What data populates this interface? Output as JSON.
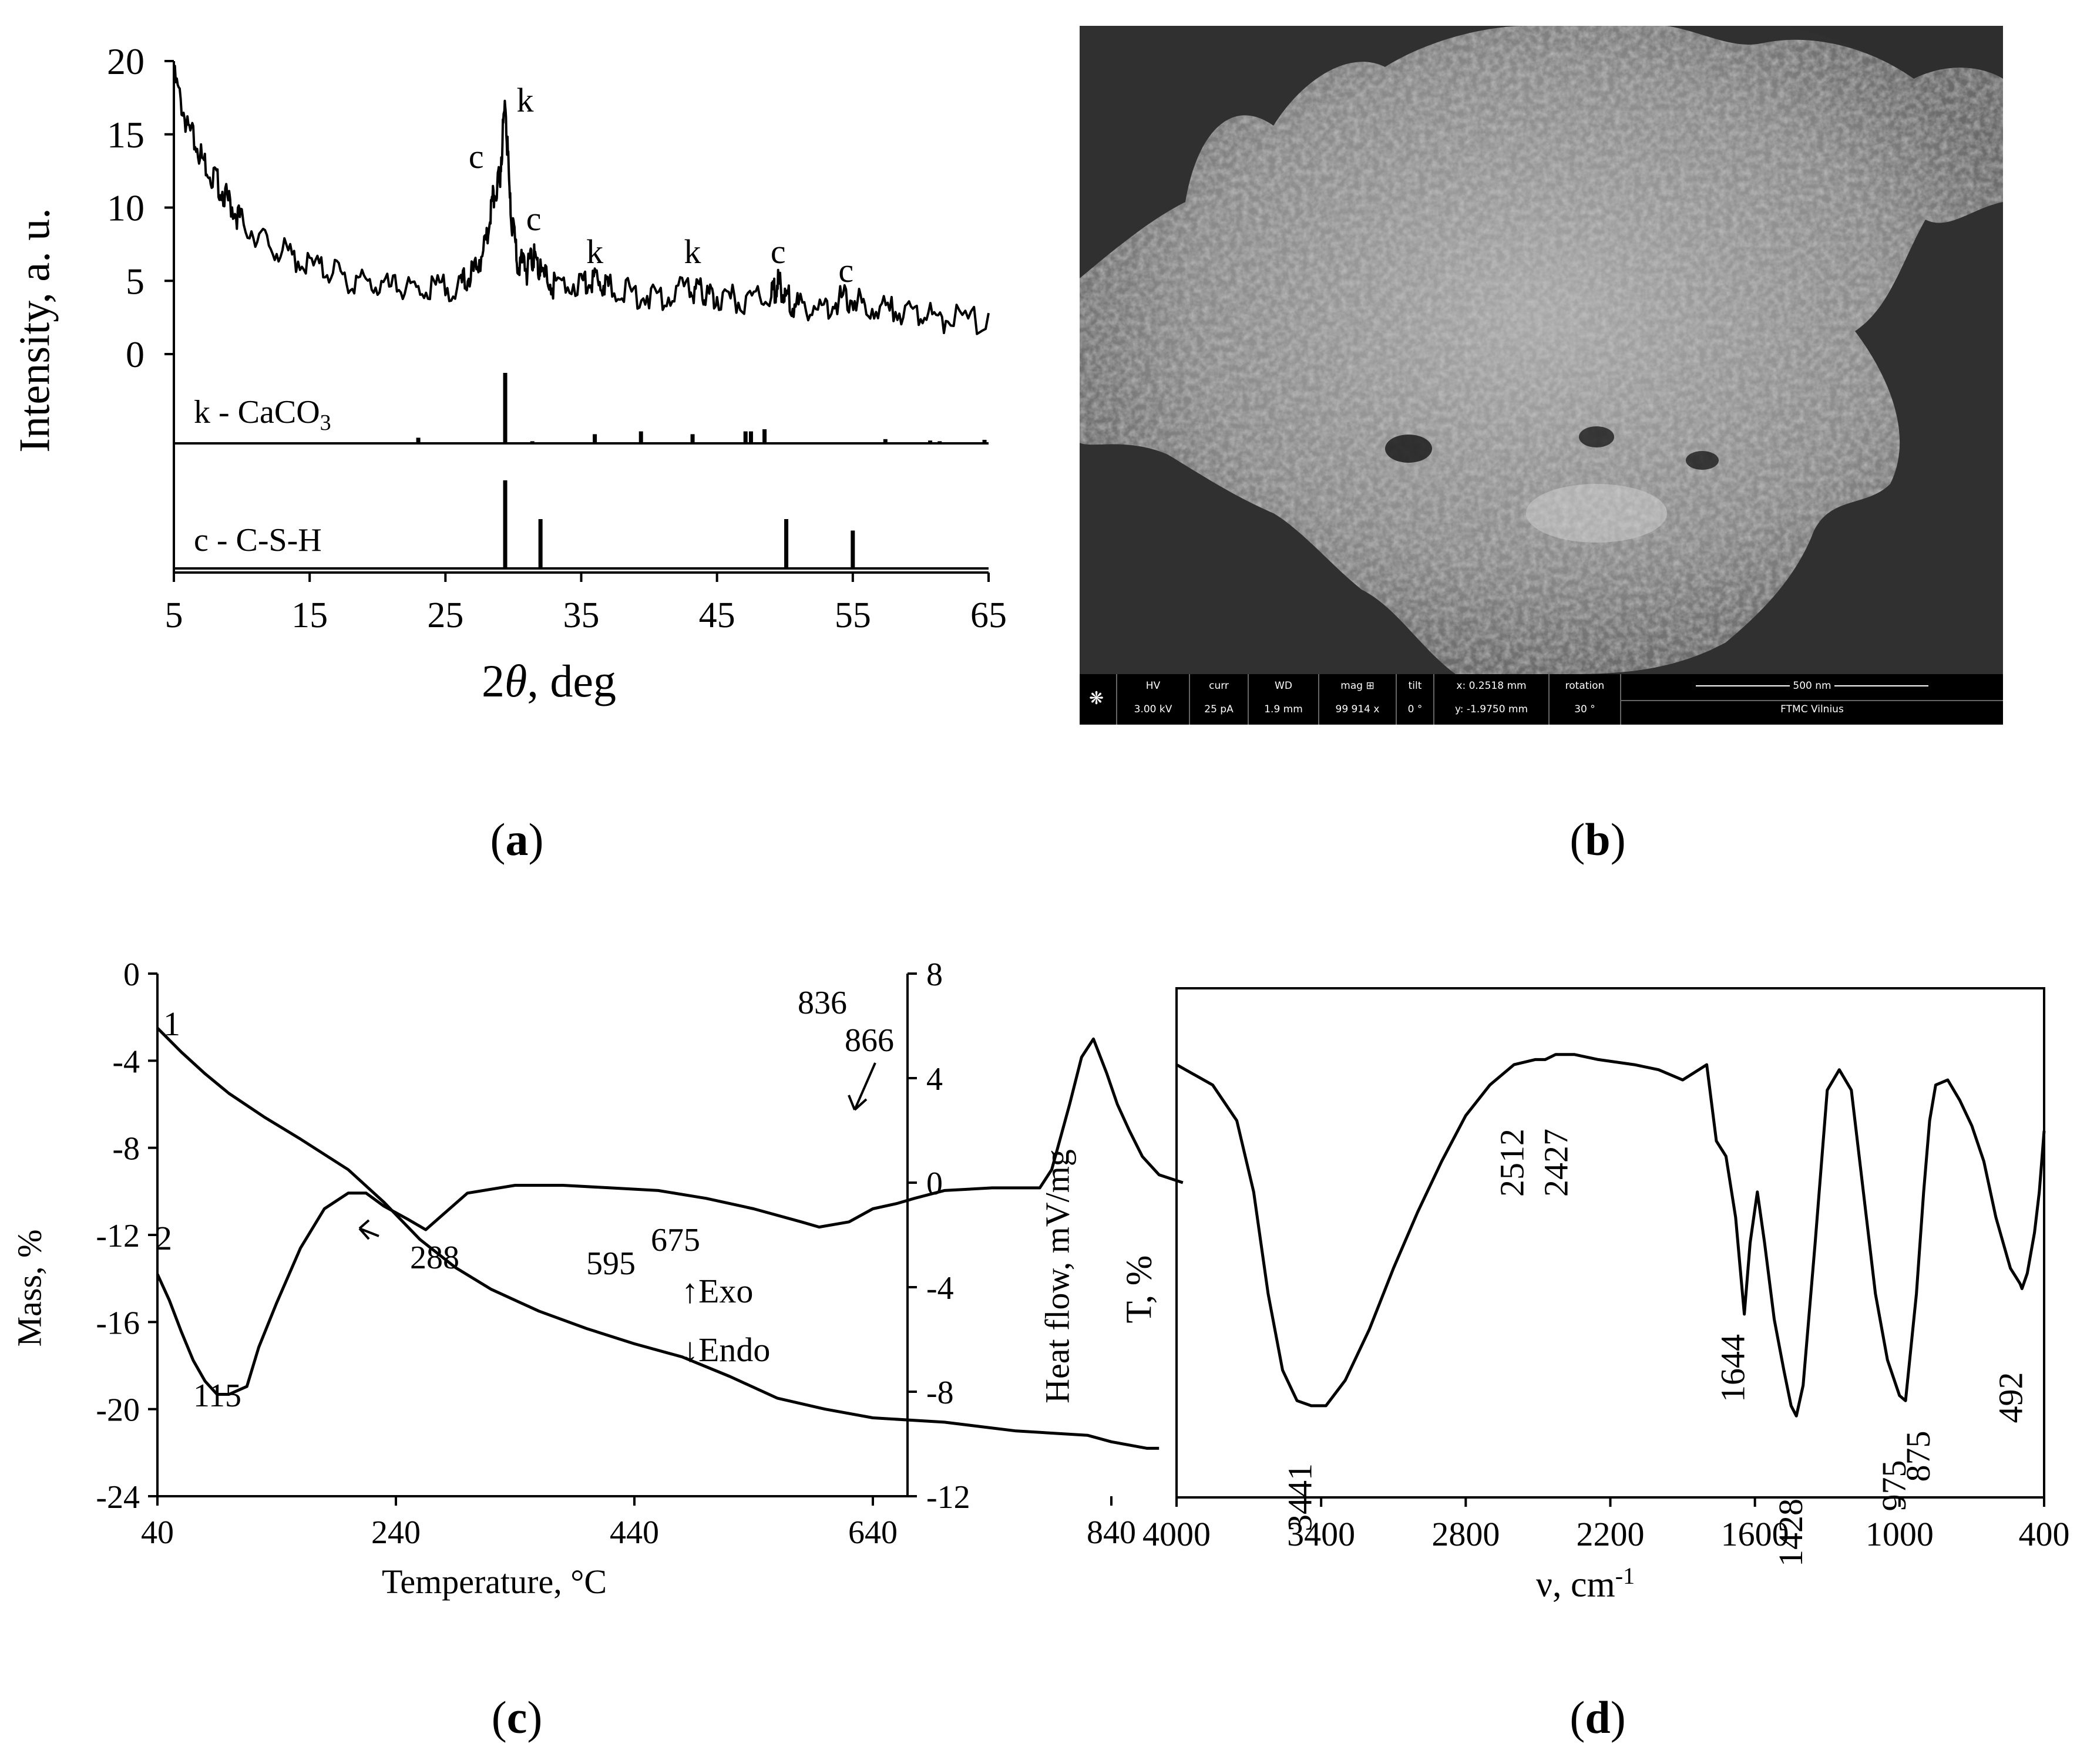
{
  "captions": {
    "a": "a",
    "b": "b",
    "c": "c",
    "d": "d"
  },
  "panel_a": {
    "ylabel": "Intensity, a. u.",
    "xlabel_italic": "θ",
    "xlabel_pre": "2",
    "xlabel_post": ", deg",
    "legend_k": "k - CaCO",
    "legend_k_sub": "3",
    "legend_c": "c - C-S-H"
  },
  "panel_b": {
    "hv_label": "HV",
    "hv_value": "3.00 kV",
    "curr_label": "curr",
    "curr_value": "25 pA",
    "wd_label": "WD",
    "wd_value": "1.9 mm",
    "mag_label": "mag ⊞",
    "mag_value": "99 914 x",
    "tilt_label": "tilt",
    "tilt_value": "0 °",
    "x_value": "x: 0.2518 mm",
    "y_value": "y: -1.9750 mm",
    "rotation_label": "rotation",
    "rotation_value": "30 °",
    "scale_label": "500 nm",
    "facility": "FTMC Vilnius"
  },
  "panel_c": {
    "xlabel": "Temperature, °C",
    "ylabel_left": "Mass, %",
    "ylabel_right": "Heat flow, mV/mg",
    "exo": "Exo",
    "endo": "Endo",
    "curve1_label": "1",
    "curve2_label": "2"
  },
  "panel_d": {
    "xlabel": "ν, cm",
    "xlabel_sup": "-1",
    "ylabel": "T, %"
  },
  "chart_data": [
    {
      "id": "a",
      "type": "line",
      "xlabel": "2θ, deg",
      "ylabel": "Intensity, a. u.",
      "xlim": [
        5,
        65
      ],
      "ylim": [
        0,
        20
      ],
      "xticks": [
        5,
        15,
        25,
        35,
        45,
        55,
        65
      ],
      "yticks": [
        0,
        5,
        10,
        15,
        20
      ],
      "series": [
        {
          "name": "sample",
          "x": [
            5,
            6,
            7,
            8,
            9,
            10,
            12,
            14,
            16,
            18,
            20,
            22,
            24,
            26,
            27,
            28,
            28.5,
            29,
            29.4,
            29.8,
            30.3,
            31,
            31.5,
            32,
            33,
            35,
            36,
            37,
            39,
            41,
            43,
            44,
            45,
            47,
            49,
            49.5,
            50,
            51,
            53,
            54.5,
            56,
            58,
            60,
            62,
            65
          ],
          "y": [
            19.5,
            16,
            14,
            12.5,
            11,
            9.5,
            8,
            7,
            6.2,
            5.6,
            5.1,
            4.9,
            4.9,
            5.2,
            6,
            8,
            11,
            12.5,
            17.8,
            10,
            7,
            6.2,
            7.2,
            6,
            5.2,
            5.4,
            5.8,
            5.1,
            4.6,
            4.5,
            4.9,
            4.6,
            4.4,
            4.2,
            4.3,
            5.4,
            4.4,
            3.8,
            3.8,
            4.4,
            3.8,
            3.4,
            3.2,
            2.9,
            2.8
          ]
        }
      ],
      "peaks": [
        {
          "label": "c",
          "x": 29.0
        },
        {
          "label": "k",
          "x": 29.4
        },
        {
          "label": "c",
          "x": 31.5
        },
        {
          "label": "k",
          "x": 36.0
        },
        {
          "label": "k",
          "x": 43.2
        },
        {
          "label": "c",
          "x": 49.5
        },
        {
          "label": "c",
          "x": 54.5
        }
      ],
      "reference": [
        {
          "name": "k - CaCO3",
          "lines": [
            [
              23.0,
              0.08
            ],
            [
              29.4,
              1.0
            ],
            [
              31.4,
              0.03
            ],
            [
              36.0,
              0.13
            ],
            [
              39.4,
              0.17
            ],
            [
              43.2,
              0.13
            ],
            [
              47.1,
              0.17
            ],
            [
              47.5,
              0.17
            ],
            [
              48.5,
              0.2
            ],
            [
              57.4,
              0.06
            ],
            [
              60.7,
              0.04
            ],
            [
              61.4,
              0.03
            ],
            [
              64.7,
              0.05
            ]
          ]
        },
        {
          "name": "c - C-S-H",
          "lines": [
            [
              29.4,
              1.0
            ],
            [
              32.0,
              0.56
            ],
            [
              50.1,
              0.56
            ],
            [
              55.0,
              0.43
            ]
          ]
        }
      ]
    },
    {
      "id": "c",
      "type": "line",
      "xlabel": "Temperature, °C",
      "ylabel": "Mass, %",
      "y2label": "Heat flow, mV/mg",
      "xlim": [
        40,
        900
      ],
      "ylim": [
        -24,
        0
      ],
      "y2lim": [
        -12,
        8
      ],
      "xticks": [
        40,
        240,
        440,
        640,
        840
      ],
      "yticks": [
        0,
        -4,
        -8,
        -12,
        -16,
        -20,
        -24
      ],
      "y2ticks": [
        8,
        4,
        0,
        -4,
        -8,
        -12
      ],
      "series": [
        {
          "name": "1",
          "axis": "left",
          "x": [
            40,
            60,
            80,
            100,
            130,
            160,
            200,
            230,
            260,
            290,
            320,
            360,
            400,
            440,
            480,
            520,
            560,
            600,
            640,
            700,
            760,
            820,
            840,
            870,
            880
          ],
          "y": [
            -2.5,
            -3.6,
            -4.6,
            -5.5,
            -6.6,
            -7.6,
            -9.0,
            -10.5,
            -12.2,
            -13.5,
            -14.5,
            -15.5,
            -16.3,
            -17.0,
            -17.6,
            -18.5,
            -19.5,
            -20.0,
            -20.4,
            -20.6,
            -21.0,
            -21.2,
            -21.5,
            -21.8,
            -21.8
          ]
        },
        {
          "name": "2",
          "axis": "right",
          "x": [
            40,
            50,
            60,
            70,
            80,
            90,
            100,
            115,
            125,
            140,
            160,
            180,
            200,
            215,
            230,
            250,
            265,
            280,
            300,
            340,
            380,
            420,
            460,
            500,
            540,
            580,
            595,
            620,
            640,
            660,
            675,
            700,
            740,
            780,
            790,
            805,
            815,
            825,
            836,
            845,
            855,
            866,
            880,
            900
          ],
          "y": [
            -3.5,
            -4.5,
            -5.7,
            -6.8,
            -7.6,
            -8.1,
            -8.1,
            -7.8,
            -6.3,
            -4.6,
            -2.5,
            -1.0,
            -0.4,
            -0.4,
            -0.9,
            -1.4,
            -1.8,
            -1.2,
            -0.4,
            -0.1,
            -0.1,
            -0.2,
            -0.3,
            -0.6,
            -1.0,
            -1.5,
            -1.7,
            -1.5,
            -1.0,
            -0.8,
            -0.6,
            -0.3,
            -0.2,
            -0.2,
            0.5,
            3.0,
            4.8,
            5.5,
            4.2,
            3.0,
            2.0,
            1.0,
            0.3,
            0.0
          ]
        }
      ],
      "annotations": [
        "115",
        "288",
        "595",
        "675",
        "836",
        "866"
      ]
    },
    {
      "id": "d",
      "type": "line",
      "xlabel": "ν, cm-1",
      "ylabel": "T, %",
      "xlim": [
        4000,
        400
      ],
      "xticks": [
        4000,
        3400,
        2800,
        2200,
        1600,
        1000,
        400
      ],
      "series": [
        {
          "name": "FTIR",
          "x": [
            4000,
            3850,
            3750,
            3680,
            3620,
            3560,
            3500,
            3441,
            3380,
            3300,
            3200,
            3100,
            3000,
            2900,
            2800,
            2700,
            2600,
            2512,
            2470,
            2427,
            2350,
            2250,
            2100,
            2000,
            1900,
            1800,
            1760,
            1720,
            1680,
            1644,
            1620,
            1590,
            1560,
            1520,
            1480,
            1450,
            1428,
            1400,
            1350,
            1300,
            1250,
            1200,
            1150,
            1100,
            1050,
            1000,
            975,
            930,
            900,
            875,
            850,
            800,
            750,
            700,
            650,
            600,
            540,
            500,
            492,
            470,
            440,
            420,
            400
          ],
          "y": [
            85,
            81,
            74,
            60,
            40,
            25,
            19,
            18,
            18,
            23,
            33,
            45,
            56,
            66,
            75,
            81,
            85,
            86,
            86,
            87,
            87,
            86,
            85,
            84,
            82,
            85,
            70,
            67,
            55,
            36,
            50,
            60,
            50,
            35,
            25,
            18,
            16,
            22,
            50,
            80,
            84,
            80,
            60,
            40,
            27,
            20,
            19,
            40,
            60,
            74,
            81,
            82,
            78,
            73,
            66,
            55,
            45,
            42,
            41,
            44,
            52,
            60,
            72
          ]
        }
      ],
      "annotations": [
        "3441",
        "2512",
        "2427",
        "1644",
        "1428",
        "975",
        "875",
        "492"
      ]
    }
  ]
}
